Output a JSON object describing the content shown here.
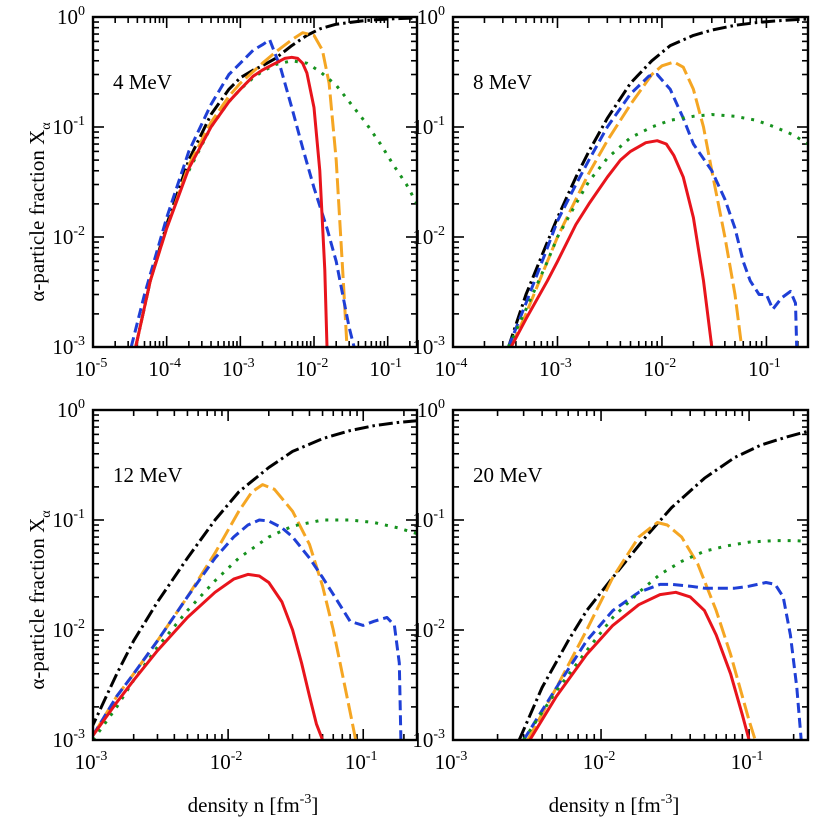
{
  "ylabel": {
    "text": "α-particle fraction  X",
    "sub": "α"
  },
  "xlabel": {
    "text": "density   n   [fm",
    "sup": "-3",
    "end": "]"
  },
  "series_styles": [
    {
      "key": "dashdot",
      "color": "#000000",
      "dash": "14 4 2.5 4"
    },
    {
      "key": "orange",
      "color": "#f5a623",
      "dash": "16 5"
    },
    {
      "key": "blue",
      "color": "#1f3fd6",
      "dash": "10 5"
    },
    {
      "key": "green",
      "color": "#16921e",
      "dash": "3 7"
    },
    {
      "key": "red",
      "color": "#e8141c",
      "dash": ""
    }
  ],
  "chart_data": [
    {
      "type": "line",
      "label": "4 MeV",
      "xlog": true,
      "ylog": true,
      "xlim": [
        1e-05,
        0.25
      ],
      "ylim": [
        0.001,
        1
      ],
      "xticks": [
        {
          "base": "10",
          "exp": "-5",
          "v": 1e-05
        },
        {
          "base": "10",
          "exp": "-4",
          "v": 0.0001
        },
        {
          "base": "10",
          "exp": "-3",
          "v": 0.001
        },
        {
          "base": "10",
          "exp": "-2",
          "v": 0.01
        },
        {
          "base": "10",
          "exp": "-1",
          "v": 0.1
        }
      ],
      "yticks": [
        {
          "base": "10",
          "exp": "-3",
          "v": 0.001
        },
        {
          "base": "10",
          "exp": "-2",
          "v": 0.01
        },
        {
          "base": "10",
          "exp": "-1",
          "v": 0.1
        },
        {
          "base": "10",
          "exp": "0",
          "v": 1
        }
      ],
      "series": [
        {
          "style": "dashdot",
          "x": [
            3.8e-05,
            6e-05,
            0.0001,
            0.0002,
            0.0004,
            0.0007,
            0.001,
            0.0015,
            0.002,
            0.003,
            0.005,
            0.008,
            0.012,
            0.02,
            0.05,
            0.1,
            0.15,
            0.25
          ],
          "y": [
            0.001,
            0.004,
            0.013,
            0.05,
            0.13,
            0.22,
            0.28,
            0.33,
            0.36,
            0.42,
            0.55,
            0.68,
            0.78,
            0.86,
            0.93,
            0.96,
            0.97,
            0.98
          ]
        },
        {
          "style": "orange",
          "x": [
            3.8e-05,
            6e-05,
            0.0001,
            0.0002,
            0.0004,
            0.0007,
            0.001,
            0.002,
            0.003,
            0.005,
            0.007,
            0.01,
            0.013,
            0.016,
            0.02,
            0.025,
            0.028
          ],
          "y": [
            0.001,
            0.004,
            0.012,
            0.045,
            0.11,
            0.19,
            0.25,
            0.38,
            0.48,
            0.62,
            0.72,
            0.68,
            0.5,
            0.25,
            0.05,
            0.004,
            0.001
          ]
        },
        {
          "style": "blue",
          "x": [
            3.3e-05,
            5e-05,
            0.0001,
            0.0002,
            0.0004,
            0.0007,
            0.001,
            0.0015,
            0.002,
            0.0025,
            0.0035,
            0.005,
            0.007,
            0.01,
            0.015,
            0.02,
            0.025,
            0.03,
            0.035
          ],
          "y": [
            0.001,
            0.003,
            0.015,
            0.06,
            0.16,
            0.3,
            0.38,
            0.5,
            0.56,
            0.62,
            0.35,
            0.15,
            0.065,
            0.028,
            0.012,
            0.006,
            0.0028,
            0.0015,
            0.001
          ]
        },
        {
          "style": "green",
          "x": [
            0.0002,
            0.0004,
            0.0007,
            0.001,
            0.0015,
            0.002,
            0.003,
            0.005,
            0.008,
            0.012,
            0.02,
            0.03,
            0.05,
            0.08,
            0.12,
            0.18,
            0.25
          ],
          "y": [
            0.04,
            0.1,
            0.17,
            0.22,
            0.28,
            0.32,
            0.37,
            0.4,
            0.38,
            0.32,
            0.24,
            0.17,
            0.11,
            0.07,
            0.045,
            0.03,
            0.02
          ]
        },
        {
          "style": "red",
          "x": [
            3.8e-05,
            6e-05,
            0.0001,
            0.0002,
            0.0004,
            0.0007,
            0.001,
            0.0015,
            0.002,
            0.003,
            0.004,
            0.005,
            0.006,
            0.007,
            0.008,
            0.01,
            0.012,
            0.014,
            0.015
          ],
          "y": [
            0.001,
            0.004,
            0.012,
            0.042,
            0.1,
            0.17,
            0.22,
            0.29,
            0.33,
            0.38,
            0.42,
            0.43,
            0.42,
            0.38,
            0.31,
            0.15,
            0.04,
            0.005,
            0.001
          ]
        }
      ]
    },
    {
      "type": "line",
      "label": "8 MeV",
      "xlog": true,
      "ylog": true,
      "xlim": [
        0.0001,
        0.25
      ],
      "ylim": [
        0.001,
        1
      ],
      "xticks": [
        {
          "base": "10",
          "exp": "-4",
          "v": 0.0001
        },
        {
          "base": "10",
          "exp": "-3",
          "v": 0.001
        },
        {
          "base": "10",
          "exp": "-2",
          "v": 0.01
        },
        {
          "base": "10",
          "exp": "-1",
          "v": 0.1
        }
      ],
      "yticks": [
        {
          "base": "10",
          "exp": "-3",
          "v": 0.001
        },
        {
          "base": "10",
          "exp": "-2",
          "v": 0.01
        },
        {
          "base": "10",
          "exp": "-1",
          "v": 0.1
        },
        {
          "base": "10",
          "exp": "0",
          "v": 1
        }
      ],
      "series": [
        {
          "style": "dashdot",
          "x": [
            0.00034,
            0.0005,
            0.0008,
            0.001,
            0.0015,
            0.002,
            0.003,
            0.005,
            0.008,
            0.012,
            0.02,
            0.03,
            0.05,
            0.08,
            0.12,
            0.2,
            0.25
          ],
          "y": [
            0.001,
            0.003,
            0.009,
            0.015,
            0.035,
            0.06,
            0.12,
            0.25,
            0.4,
            0.55,
            0.68,
            0.76,
            0.84,
            0.89,
            0.92,
            0.95,
            0.96
          ]
        },
        {
          "style": "orange",
          "x": [
            0.00036,
            0.0005,
            0.0008,
            0.001,
            0.0015,
            0.002,
            0.003,
            0.005,
            0.008,
            0.01,
            0.013,
            0.016,
            0.02,
            0.025,
            0.03,
            0.04,
            0.05,
            0.058
          ],
          "y": [
            0.001,
            0.002,
            0.006,
            0.01,
            0.022,
            0.038,
            0.075,
            0.16,
            0.3,
            0.36,
            0.39,
            0.35,
            0.22,
            0.1,
            0.04,
            0.01,
            0.003,
            0.001
          ]
        },
        {
          "style": "blue",
          "x": [
            0.00034,
            0.0005,
            0.0008,
            0.001,
            0.0015,
            0.002,
            0.003,
            0.005,
            0.0075,
            0.009,
            0.012,
            0.016,
            0.02,
            0.03,
            0.04,
            0.05,
            0.06,
            0.07,
            0.085,
            0.1,
            0.115,
            0.14,
            0.17,
            0.19,
            0.195
          ],
          "y": [
            0.001,
            0.0025,
            0.008,
            0.014,
            0.03,
            0.05,
            0.1,
            0.2,
            0.29,
            0.3,
            0.22,
            0.12,
            0.07,
            0.04,
            0.022,
            0.012,
            0.006,
            0.004,
            0.003,
            0.003,
            0.0022,
            0.0028,
            0.0032,
            0.0025,
            0.001
          ]
        },
        {
          "style": "green",
          "x": [
            0.00034,
            0.0005,
            0.0008,
            0.001,
            0.0015,
            0.002,
            0.003,
            0.005,
            0.008,
            0.012,
            0.02,
            0.03,
            0.05,
            0.08,
            0.12,
            0.18,
            0.25
          ],
          "y": [
            0.001,
            0.0022,
            0.006,
            0.01,
            0.02,
            0.032,
            0.052,
            0.08,
            0.1,
            0.115,
            0.125,
            0.13,
            0.125,
            0.115,
            0.1,
            0.085,
            0.07
          ]
        },
        {
          "style": "red",
          "x": [
            0.00036,
            0.0005,
            0.0008,
            0.001,
            0.0015,
            0.002,
            0.003,
            0.004,
            0.005,
            0.007,
            0.009,
            0.011,
            0.013,
            0.016,
            0.02,
            0.025,
            0.03
          ],
          "y": [
            0.001,
            0.0018,
            0.004,
            0.006,
            0.013,
            0.02,
            0.035,
            0.05,
            0.06,
            0.072,
            0.075,
            0.07,
            0.055,
            0.035,
            0.015,
            0.004,
            0.001
          ]
        }
      ]
    },
    {
      "type": "line",
      "label": "12 MeV",
      "xlog": true,
      "ylog": true,
      "xlim": [
        0.001,
        0.25
      ],
      "ylim": [
        0.001,
        1
      ],
      "xticks": [
        {
          "base": "10",
          "exp": "-3",
          "v": 0.001
        },
        {
          "base": "10",
          "exp": "-2",
          "v": 0.01
        },
        {
          "base": "10",
          "exp": "-1",
          "v": 0.1
        }
      ],
      "yticks": [
        {
          "base": "10",
          "exp": "-3",
          "v": 0.001
        },
        {
          "base": "10",
          "exp": "-2",
          "v": 0.01
        },
        {
          "base": "10",
          "exp": "-1",
          "v": 0.1
        },
        {
          "base": "10",
          "exp": "0",
          "v": 1
        }
      ],
      "series": [
        {
          "style": "dashdot",
          "x": [
            0.00095,
            0.0015,
            0.002,
            0.003,
            0.005,
            0.008,
            0.012,
            0.02,
            0.03,
            0.05,
            0.08,
            0.12,
            0.18,
            0.25
          ],
          "y": [
            0.0012,
            0.004,
            0.008,
            0.018,
            0.045,
            0.1,
            0.18,
            0.3,
            0.42,
            0.55,
            0.65,
            0.72,
            0.77,
            0.8
          ]
        },
        {
          "style": "orange",
          "x": [
            0.001,
            0.0015,
            0.002,
            0.003,
            0.005,
            0.008,
            0.012,
            0.015,
            0.018,
            0.022,
            0.03,
            0.04,
            0.05,
            0.06,
            0.07,
            0.08,
            0.088
          ],
          "y": [
            0.0011,
            0.0025,
            0.004,
            0.008,
            0.02,
            0.05,
            0.12,
            0.18,
            0.21,
            0.19,
            0.12,
            0.06,
            0.025,
            0.01,
            0.004,
            0.0018,
            0.001
          ]
        },
        {
          "style": "blue",
          "x": [
            0.001,
            0.0015,
            0.002,
            0.003,
            0.005,
            0.008,
            0.011,
            0.014,
            0.017,
            0.02,
            0.025,
            0.03,
            0.04,
            0.05,
            0.065,
            0.08,
            0.1,
            0.12,
            0.15,
            0.17,
            0.185,
            0.19
          ],
          "y": [
            0.0011,
            0.0025,
            0.004,
            0.008,
            0.02,
            0.045,
            0.07,
            0.09,
            0.1,
            0.098,
            0.085,
            0.07,
            0.045,
            0.03,
            0.018,
            0.012,
            0.011,
            0.012,
            0.013,
            0.011,
            0.005,
            0.001
          ]
        },
        {
          "style": "green",
          "x": [
            0.001,
            0.0015,
            0.002,
            0.003,
            0.005,
            0.008,
            0.012,
            0.02,
            0.03,
            0.05,
            0.08,
            0.12,
            0.18,
            0.25
          ],
          "y": [
            0.001,
            0.002,
            0.0035,
            0.007,
            0.015,
            0.028,
            0.045,
            0.07,
            0.088,
            0.1,
            0.1,
            0.095,
            0.085,
            0.075
          ]
        },
        {
          "style": "red",
          "x": [
            0.001,
            0.0015,
            0.002,
            0.003,
            0.005,
            0.008,
            0.011,
            0.014,
            0.017,
            0.02,
            0.025,
            0.03,
            0.035,
            0.04,
            0.045,
            0.05
          ],
          "y": [
            0.0011,
            0.0022,
            0.0035,
            0.0065,
            0.013,
            0.022,
            0.029,
            0.032,
            0.031,
            0.027,
            0.018,
            0.01,
            0.005,
            0.0025,
            0.0014,
            0.001
          ]
        }
      ]
    },
    {
      "type": "line",
      "label": "20 MeV",
      "xlog": true,
      "ylog": true,
      "xlim": [
        0.001,
        0.25
      ],
      "ylim": [
        0.001,
        1
      ],
      "xticks": [
        {
          "base": "10",
          "exp": "-3",
          "v": 0.001
        },
        {
          "base": "10",
          "exp": "-2",
          "v": 0.01
        },
        {
          "base": "10",
          "exp": "-1",
          "v": 0.1
        }
      ],
      "yticks": [
        {
          "base": "10",
          "exp": "-3",
          "v": 0.001
        },
        {
          "base": "10",
          "exp": "-2",
          "v": 0.01
        },
        {
          "base": "10",
          "exp": "-1",
          "v": 0.1
        },
        {
          "base": "10",
          "exp": "0",
          "v": 1
        }
      ],
      "series": [
        {
          "style": "dashdot",
          "x": [
            0.0028,
            0.004,
            0.006,
            0.008,
            0.012,
            0.02,
            0.03,
            0.05,
            0.08,
            0.12,
            0.18,
            0.25
          ],
          "y": [
            0.001,
            0.003,
            0.008,
            0.015,
            0.03,
            0.07,
            0.13,
            0.24,
            0.37,
            0.48,
            0.57,
            0.64
          ]
        },
        {
          "style": "orange",
          "x": [
            0.0032,
            0.005,
            0.008,
            0.012,
            0.018,
            0.024,
            0.028,
            0.035,
            0.045,
            0.06,
            0.075,
            0.09,
            0.1,
            0.11
          ],
          "y": [
            0.001,
            0.003,
            0.01,
            0.03,
            0.07,
            0.095,
            0.09,
            0.07,
            0.04,
            0.015,
            0.006,
            0.0025,
            0.0015,
            0.001
          ]
        },
        {
          "style": "blue",
          "x": [
            0.003,
            0.005,
            0.008,
            0.012,
            0.018,
            0.025,
            0.03,
            0.04,
            0.05,
            0.06,
            0.08,
            0.1,
            0.13,
            0.15,
            0.17,
            0.19,
            0.21,
            0.225
          ],
          "y": [
            0.001,
            0.003,
            0.008,
            0.015,
            0.022,
            0.026,
            0.026,
            0.025,
            0.024,
            0.024,
            0.024,
            0.025,
            0.027,
            0.026,
            0.02,
            0.009,
            0.003,
            0.001
          ]
        },
        {
          "style": "green",
          "x": [
            0.003,
            0.005,
            0.008,
            0.012,
            0.018,
            0.025,
            0.035,
            0.05,
            0.07,
            0.1,
            0.15,
            0.2,
            0.25
          ],
          "y": [
            0.001,
            0.0028,
            0.0065,
            0.013,
            0.022,
            0.032,
            0.042,
            0.052,
            0.058,
            0.063,
            0.065,
            0.065,
            0.064
          ]
        },
        {
          "style": "red",
          "x": [
            0.0033,
            0.005,
            0.008,
            0.012,
            0.018,
            0.025,
            0.032,
            0.04,
            0.05,
            0.06,
            0.075,
            0.09,
            0.1
          ],
          "y": [
            0.001,
            0.0025,
            0.006,
            0.011,
            0.017,
            0.021,
            0.022,
            0.02,
            0.015,
            0.009,
            0.004,
            0.0017,
            0.001
          ]
        }
      ]
    }
  ]
}
